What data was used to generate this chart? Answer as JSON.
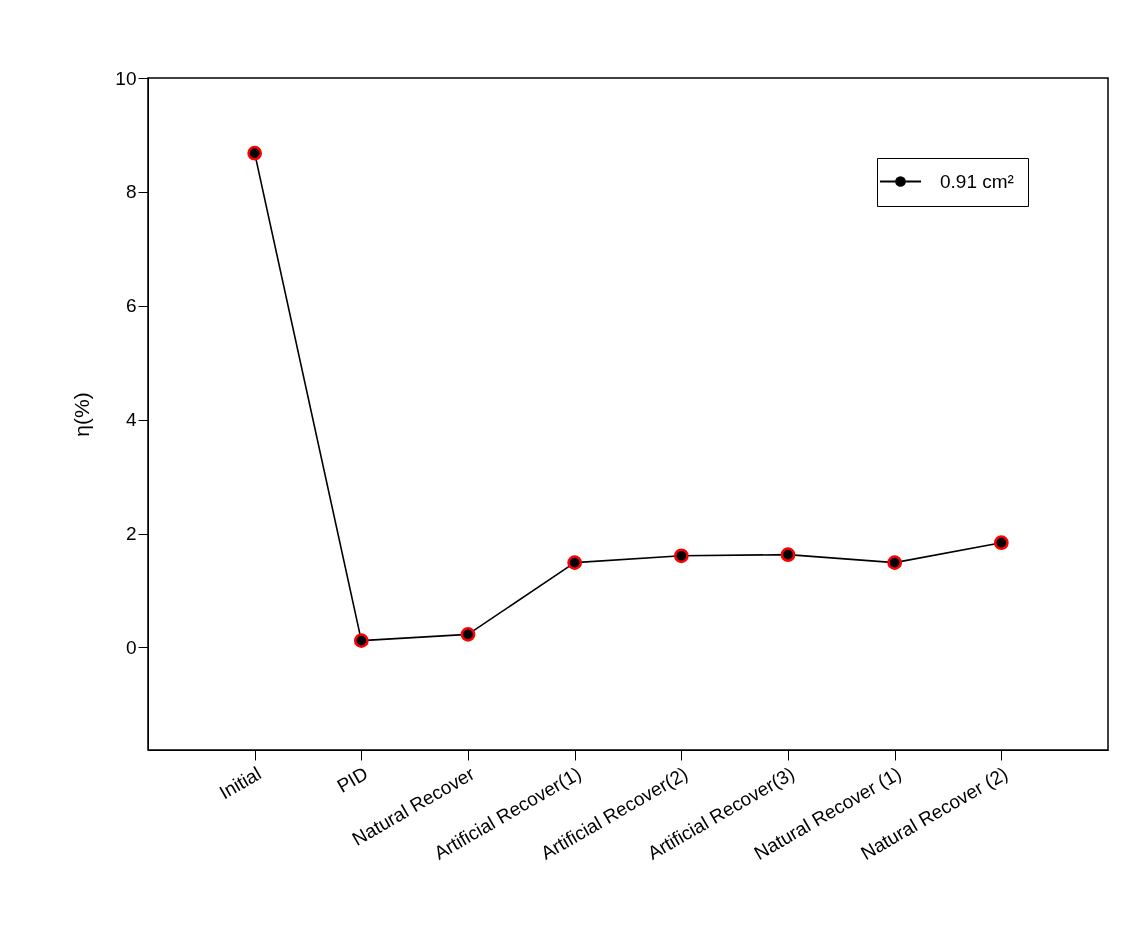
{
  "chart_data": {
    "type": "line",
    "ylabel": "η(%)",
    "categories": [
      "Initial",
      "PID",
      "Natural Recover",
      "Artificial Recover(1)",
      "Artificial Recover(2)",
      "Artificial Recover(3)",
      "Natural Recover (1)",
      "Natural Recover (2)"
    ],
    "series": [
      {
        "name": "0.91 cm²",
        "color": "#000000",
        "values": [
          8.68,
          0.12,
          0.23,
          1.49,
          1.61,
          1.63,
          1.49,
          1.84
        ]
      }
    ],
    "ylim": [
      -1.8,
      10
    ],
    "yticks": [
      0,
      2,
      4,
      6,
      8,
      10
    ],
    "grid": false,
    "legend": "top right",
    "marker": "circle",
    "line_style": "solid"
  }
}
